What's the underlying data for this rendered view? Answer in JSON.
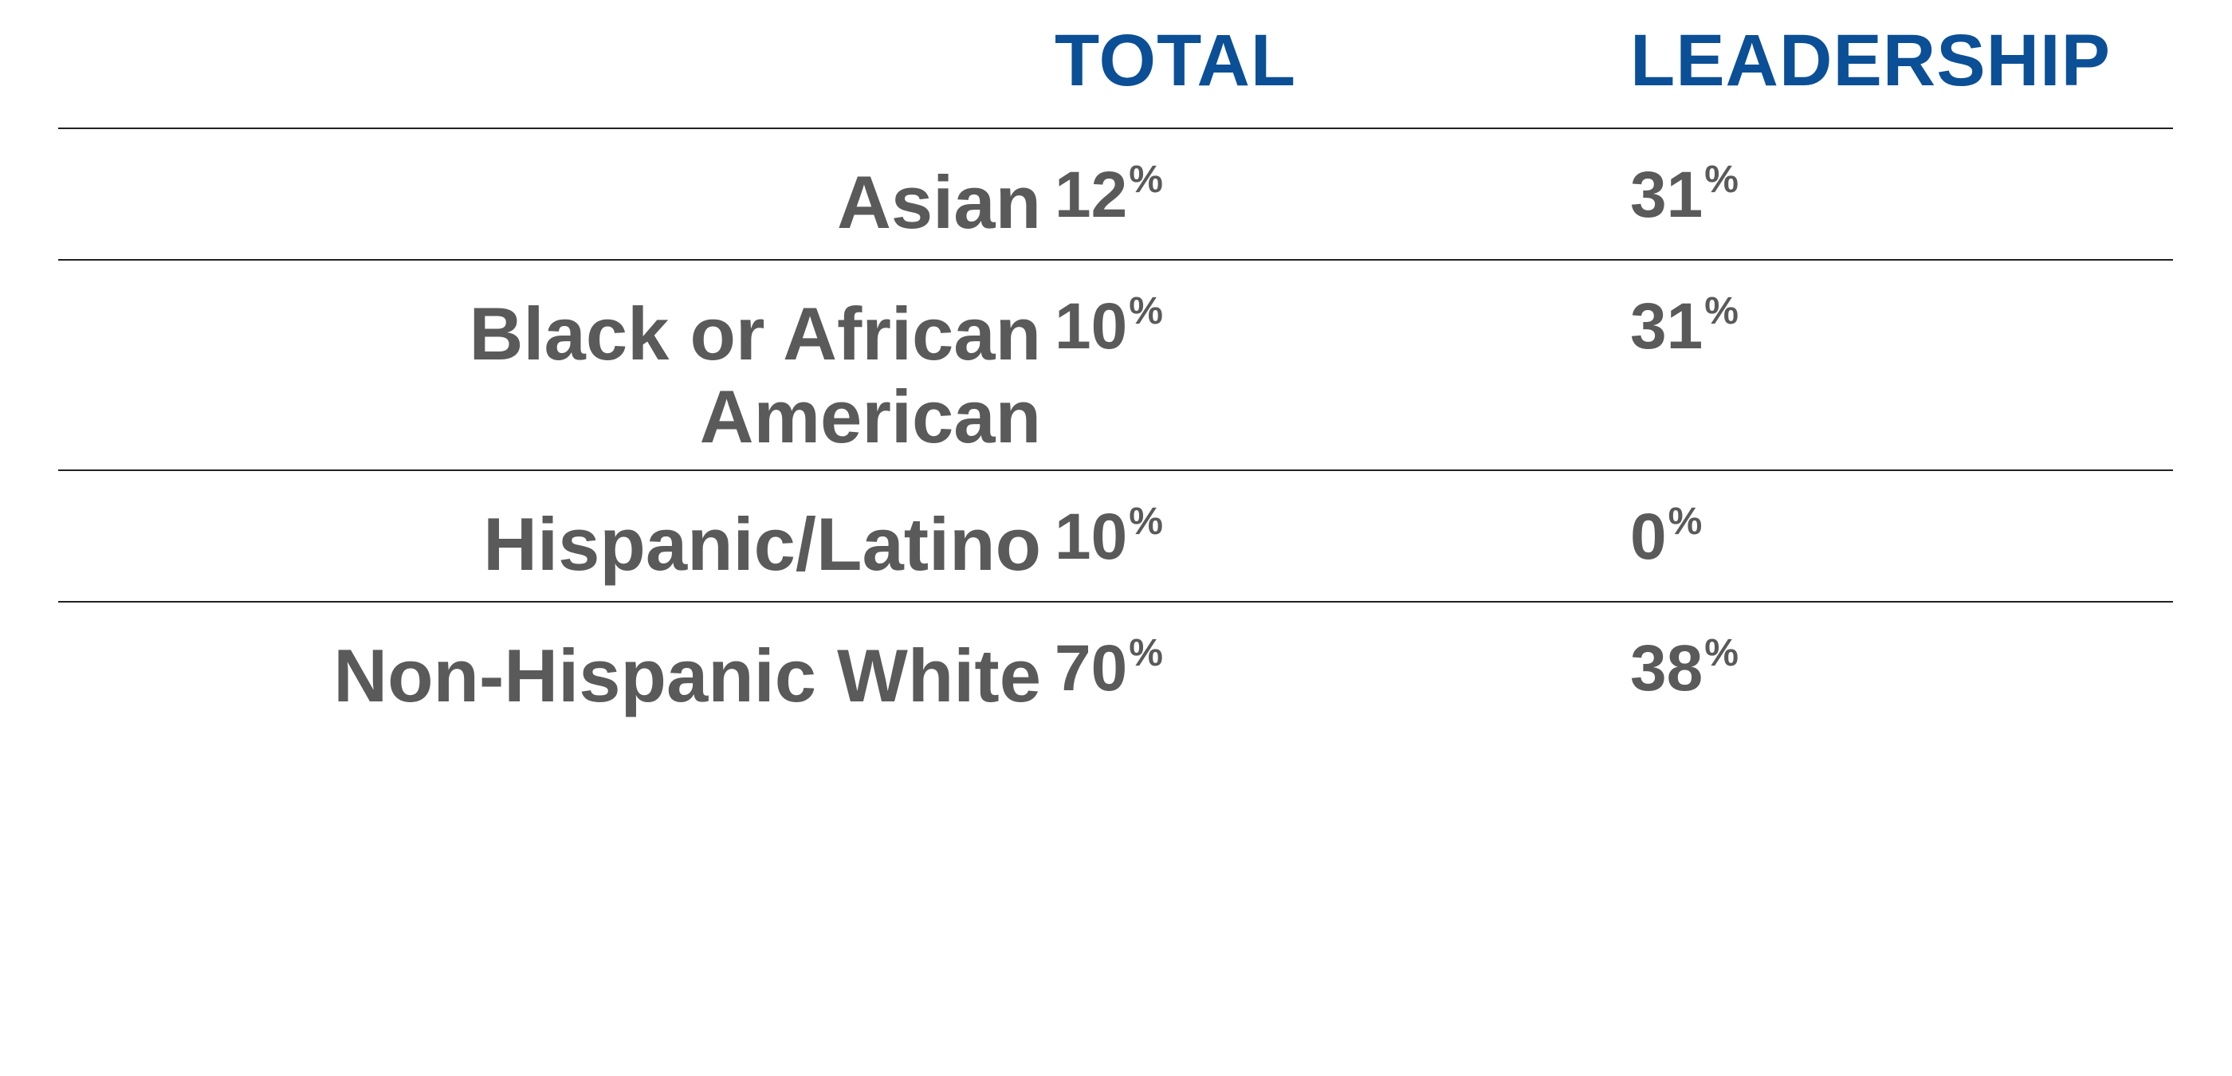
{
  "chart_data": {
    "type": "table",
    "columns": [
      "TOTAL",
      "LEADERSHIP"
    ],
    "rows": [
      {
        "label": "Asian",
        "total": "12",
        "leadership": "31"
      },
      {
        "label": "Black or African American",
        "total": "10",
        "leadership": "31"
      },
      {
        "label": "Hispanic/Latino",
        "total": "10",
        "leadership": "0"
      },
      {
        "label": "Non-Hispanic White",
        "total": "70",
        "leadership": "38"
      }
    ],
    "unit": "%",
    "header_color": "#0b4f96",
    "text_color": "#5a5a5a"
  }
}
